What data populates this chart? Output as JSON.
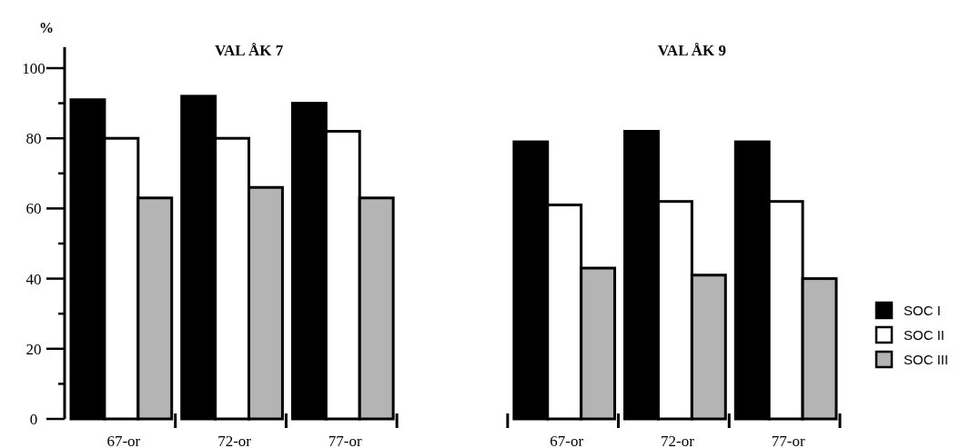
{
  "chart_data": {
    "type": "bar",
    "ylabel": "%",
    "annotations": [
      "VAL ÅK 7",
      "VAL ÅK 9"
    ],
    "categories": [
      "67-or",
      "72-or",
      "77-or",
      null,
      "67-or",
      "72-or",
      "77-or"
    ],
    "series": [
      {
        "name": "SOC I",
        "color": "#000000",
        "values": [
          91,
          92,
          90,
          null,
          79,
          82,
          79
        ]
      },
      {
        "name": "SOC II",
        "color": "#ffffff",
        "values": [
          80,
          80,
          82,
          null,
          61,
          62,
          62
        ]
      },
      {
        "name": "SOC III",
        "color": "#b4b4b4",
        "values": [
          63,
          66,
          63,
          null,
          43,
          41,
          40
        ]
      }
    ],
    "ylim": [
      0,
      106
    ],
    "yticks": [
      0,
      {
        "value": 10,
        "label": null
      },
      20,
      {
        "value": 30,
        "label": null
      },
      40,
      {
        "value": 50,
        "label": null
      },
      60,
      {
        "value": 70,
        "label": null
      },
      80,
      {
        "value": 90,
        "label": null
      },
      100
    ],
    "legend": "right"
  }
}
